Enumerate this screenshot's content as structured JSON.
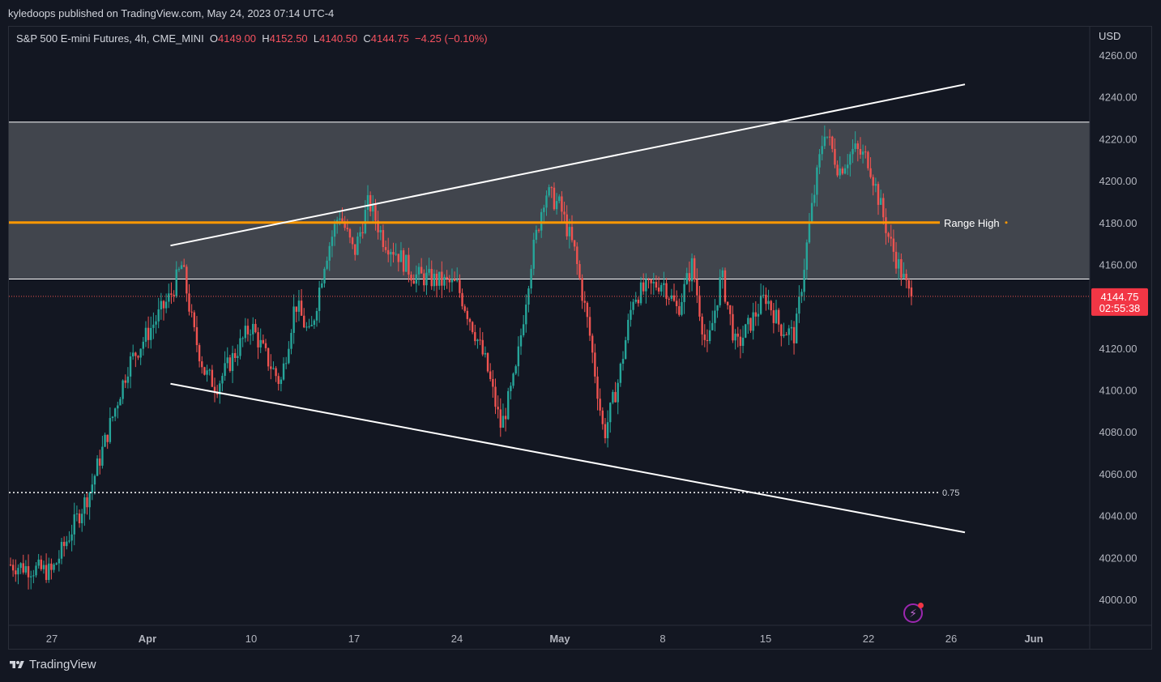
{
  "header": {
    "publisher": "kyledoops published on TradingView.com, May 24, 2023 07:14 UTC-4"
  },
  "legend": {
    "symbol": "S&P 500 E-mini Futures, 4h, CME_MINI",
    "o_label": "O",
    "o_value": "4149.00",
    "h_label": "H",
    "h_value": "4152.50",
    "l_label": "L",
    "l_value": "4140.50",
    "c_label": "C",
    "c_value": "4144.75",
    "change": "−4.25 (−0.10%)"
  },
  "price_axis": {
    "currency": "USD",
    "ticks": [
      "4260.00",
      "4240.00",
      "4220.00",
      "4200.00",
      "4180.00",
      "4160.00",
      "4140.00",
      "4120.00",
      "4100.00",
      "4080.00",
      "4060.00",
      "4040.00",
      "4020.00",
      "4000.00"
    ],
    "last_price": "4144.75",
    "countdown": "02:55:38"
  },
  "time_axis": {
    "ticks": [
      "27",
      "Apr",
      "10",
      "17",
      "24",
      "May",
      "8",
      "15",
      "22",
      "26",
      "Jun"
    ]
  },
  "annotations": {
    "range_high_label": "Range High",
    "fib_label": "0.75"
  },
  "footer": {
    "brand": "TradingView"
  },
  "colors": {
    "background": "#131722",
    "up": "#26a69a",
    "down": "#ef5350",
    "range_high": "#ff9800",
    "zone_fill": "#4a4d55",
    "lines": "#ffffff",
    "last_price_bg": "#f23645"
  },
  "chart_data": {
    "type": "candlestick",
    "symbol": "S&P 500 E-mini Futures",
    "interval": "4h",
    "exchange": "CME_MINI",
    "currency": "USD",
    "ylim": [
      3988,
      4274
    ],
    "grid": false,
    "last_ohlc": {
      "open": 4149.0,
      "high": 4152.5,
      "low": 4140.5,
      "close": 4144.75,
      "change": -4.25,
      "change_pct": -0.1
    },
    "levels": {
      "range_high": 4180.0,
      "zone_top": 4228.0,
      "zone_bottom": 4153.0,
      "fib_0_75": 4051.0
    },
    "trendlines": [
      {
        "name": "upper",
        "from": {
          "date": "2023-04-03",
          "price": 4169
        },
        "to": {
          "date": "2023-05-27",
          "price": 4246
        }
      },
      {
        "name": "lower",
        "from": {
          "date": "2023-04-03",
          "price": 4103
        },
        "to": {
          "date": "2023-05-27",
          "price": 4032
        }
      }
    ],
    "path_points": [
      {
        "date": "2023-03-22",
        "price": 3992
      },
      {
        "date": "2023-03-24",
        "price": 4018
      },
      {
        "date": "2023-03-27",
        "price": 4013
      },
      {
        "date": "2023-03-29",
        "price": 4052
      },
      {
        "date": "2023-03-31",
        "price": 4112
      },
      {
        "date": "2023-04-03",
        "price": 4145
      },
      {
        "date": "2023-04-04",
        "price": 4160
      },
      {
        "date": "2023-04-05",
        "price": 4128
      },
      {
        "date": "2023-04-06",
        "price": 4108
      },
      {
        "date": "2023-04-07",
        "price": 4102
      },
      {
        "date": "2023-04-10",
        "price": 4131
      },
      {
        "date": "2023-04-11",
        "price": 4116
      },
      {
        "date": "2023-04-12",
        "price": 4103
      },
      {
        "date": "2023-04-13",
        "price": 4142
      },
      {
        "date": "2023-04-14",
        "price": 4125
      },
      {
        "date": "2023-04-15",
        "price": 4162
      },
      {
        "date": "2023-04-16",
        "price": 4185
      },
      {
        "date": "2023-04-17",
        "price": 4165
      },
      {
        "date": "2023-04-18",
        "price": 4190
      },
      {
        "date": "2023-04-19",
        "price": 4172
      },
      {
        "date": "2023-04-20",
        "price": 4165
      },
      {
        "date": "2023-04-21",
        "price": 4155
      },
      {
        "date": "2023-04-24",
        "price": 4150
      },
      {
        "date": "2023-04-25",
        "price": 4132
      },
      {
        "date": "2023-04-26",
        "price": 4112
      },
      {
        "date": "2023-04-27",
        "price": 4082
      },
      {
        "date": "2023-04-28",
        "price": 4108
      },
      {
        "date": "2023-04-29",
        "price": 4160
      },
      {
        "date": "2023-04-30",
        "price": 4195
      },
      {
        "date": "2023-05-01",
        "price": 4188
      },
      {
        "date": "2023-05-02",
        "price": 4166
      },
      {
        "date": "2023-05-03",
        "price": 4128
      },
      {
        "date": "2023-05-04",
        "price": 4078
      },
      {
        "date": "2023-05-05",
        "price": 4105
      },
      {
        "date": "2023-05-06",
        "price": 4145
      },
      {
        "date": "2023-05-08",
        "price": 4152
      },
      {
        "date": "2023-05-09",
        "price": 4138
      },
      {
        "date": "2023-05-10",
        "price": 4160
      },
      {
        "date": "2023-05-11",
        "price": 4118
      },
      {
        "date": "2023-05-12",
        "price": 4155
      },
      {
        "date": "2023-05-13",
        "price": 4120
      },
      {
        "date": "2023-05-15",
        "price": 4145
      },
      {
        "date": "2023-05-16",
        "price": 4130
      },
      {
        "date": "2023-05-17",
        "price": 4126
      },
      {
        "date": "2023-05-18",
        "price": 4180
      },
      {
        "date": "2023-05-19",
        "price": 4225
      },
      {
        "date": "2023-05-20",
        "price": 4205
      },
      {
        "date": "2023-05-21",
        "price": 4215
      },
      {
        "date": "2023-05-22",
        "price": 4210
      },
      {
        "date": "2023-05-23",
        "price": 4172
      },
      {
        "date": "2023-05-24",
        "price": 4144.75
      }
    ]
  }
}
